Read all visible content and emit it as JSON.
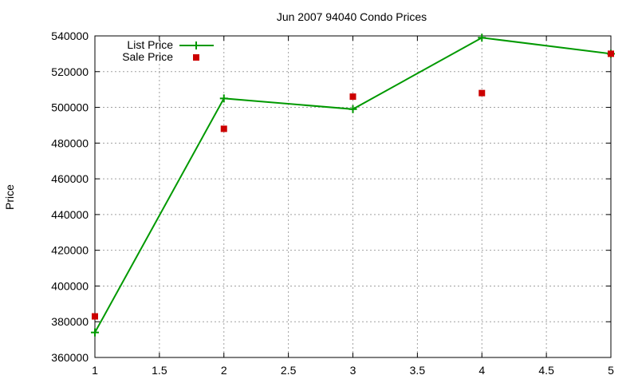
{
  "chart_data": {
    "type": "line",
    "title": "Jun 2007 94040 Condo Prices",
    "xlabel": "",
    "ylabel": "Price",
    "x": [
      1,
      2,
      3,
      4,
      5
    ],
    "xlim": [
      1,
      5
    ],
    "ylim": [
      360000,
      540000
    ],
    "x_ticks": [
      "1",
      "1.5",
      "2",
      "2.5",
      "3",
      "3.5",
      "4",
      "4.5",
      "5"
    ],
    "y_ticks": [
      "360000",
      "380000",
      "400000",
      "420000",
      "440000",
      "460000",
      "480000",
      "500000",
      "520000",
      "540000"
    ],
    "grid": true,
    "legend_position": "top-left",
    "series": [
      {
        "name": "List Price",
        "style": "line-with-plus-markers",
        "color": "#009900",
        "values": [
          374000,
          505000,
          499000,
          539000,
          530000
        ]
      },
      {
        "name": "Sale Price",
        "style": "square-points",
        "color": "#cc0000",
        "values": [
          383000,
          488000,
          506000,
          508000,
          530000
        ]
      }
    ]
  }
}
